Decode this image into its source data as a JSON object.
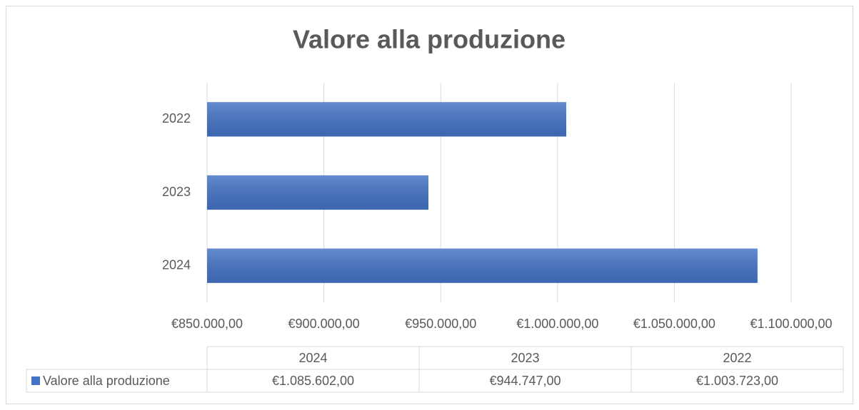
{
  "chart_data": {
    "type": "bar",
    "orientation": "horizontal",
    "title": "Valore alla produzione",
    "categories": [
      "2024",
      "2023",
      "2022"
    ],
    "series": [
      {
        "name": "Valore alla produzione",
        "color": "#4472c4",
        "values": [
          1085602,
          944747,
          1003723
        ],
        "value_labels": [
          "€1.085.602,00",
          "€944.747,00",
          "€1.003.723,00"
        ]
      }
    ],
    "xlim": [
      850000,
      1100000
    ],
    "xticks": [
      {
        "value": 850000,
        "label": "€850.000,00"
      },
      {
        "value": 900000,
        "label": "€900.000,00"
      },
      {
        "value": 950000,
        "label": "€950.000,00"
      },
      {
        "value": 1000000,
        "label": "€1.000.000,00"
      },
      {
        "value": 1050000,
        "label": "€1.050.000,00"
      },
      {
        "value": 1100000,
        "label": "€1.100.000,00"
      }
    ],
    "grid": true,
    "data_table": true
  }
}
